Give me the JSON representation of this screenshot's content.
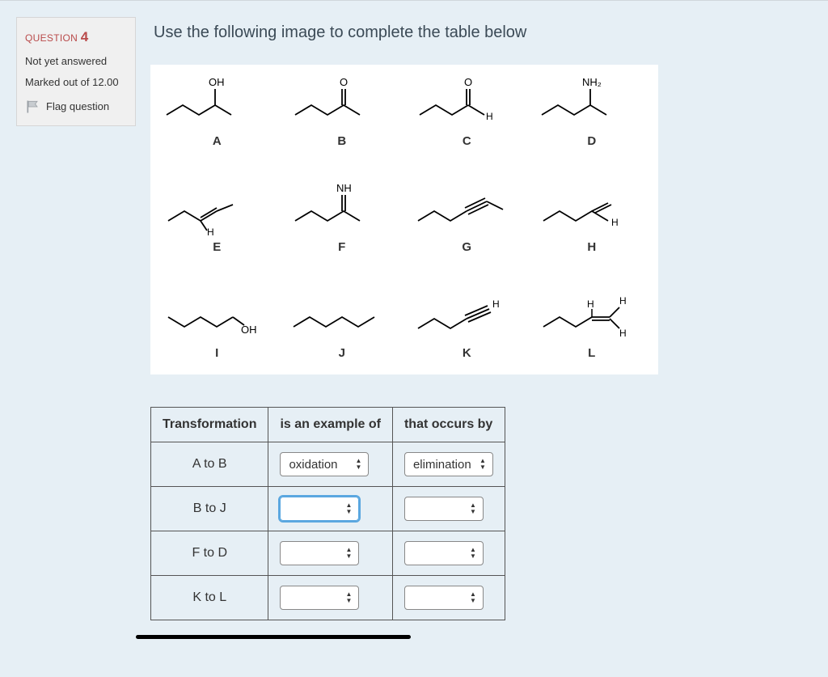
{
  "question": {
    "label": "QUESTION",
    "number": "4",
    "status": "Not yet answered",
    "marks": "Marked out of 12.00",
    "flag_text": "Flag question"
  },
  "prompt": "Use the following image to complete the table below",
  "molecules": {
    "rows": [
      [
        "A",
        "B",
        "C",
        "D"
      ],
      [
        "E",
        "F",
        "G",
        "H"
      ],
      [
        "I",
        "J",
        "K",
        "L"
      ]
    ],
    "groups": {
      "A": "OH",
      "B": "O",
      "C": "O",
      "D": "NH₂",
      "F": "NH"
    },
    "extra_h": {
      "C": "H",
      "E": "H",
      "H": "H",
      "K": "H",
      "L": [
        "H",
        "H",
        "H"
      ]
    },
    "extra_oh": {
      "I": "OH"
    }
  },
  "table": {
    "headers": [
      "Transformation",
      "is an example of",
      "that occurs by"
    ],
    "rows": [
      {
        "t": "A to B",
        "c1": "oxidation",
        "c2": "elimination",
        "focus": false
      },
      {
        "t": "B to J",
        "c1": "",
        "c2": "",
        "focus": true
      },
      {
        "t": "F to D",
        "c1": "",
        "c2": "",
        "focus": false
      },
      {
        "t": "K to L",
        "c1": "",
        "c2": "",
        "focus": false
      }
    ]
  },
  "colors": {
    "page_bg": "#e6eff5",
    "info_bg": "#f0f0f0",
    "accent_red": "#b94a4a",
    "border": "#555"
  }
}
